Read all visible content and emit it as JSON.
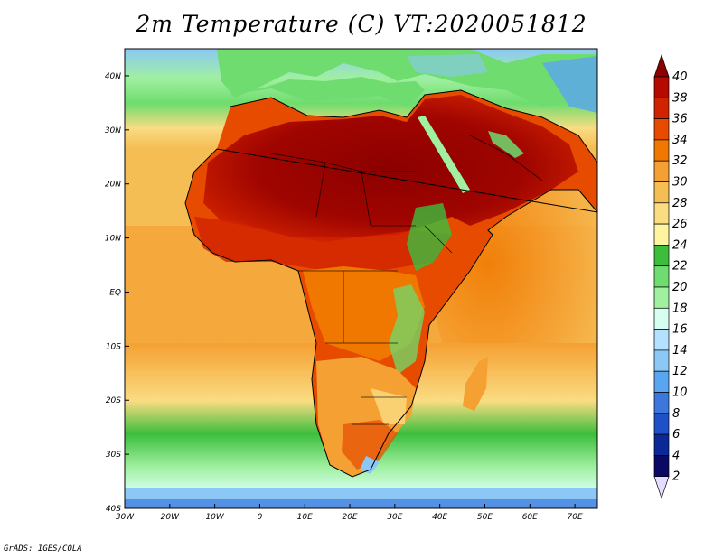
{
  "title": "2m Temperature (C) VT:2020051812",
  "credit": "GrADS: IGES/COLA",
  "map": {
    "lon_range": [
      -30,
      75
    ],
    "lat_range": [
      -40,
      45
    ],
    "lon_ticks": [
      {
        "value": -30,
        "label": "30W"
      },
      {
        "value": -20,
        "label": "20W"
      },
      {
        "value": -10,
        "label": "10W"
      },
      {
        "value": 0,
        "label": "0"
      },
      {
        "value": 10,
        "label": "10E"
      },
      {
        "value": 20,
        "label": "20E"
      },
      {
        "value": 30,
        "label": "30E"
      },
      {
        "value": 40,
        "label": "40E"
      },
      {
        "value": 50,
        "label": "50E"
      },
      {
        "value": 60,
        "label": "60E"
      },
      {
        "value": 70,
        "label": "70E"
      }
    ],
    "lat_ticks": [
      {
        "value": 40,
        "label": "40N"
      },
      {
        "value": 30,
        "label": "30N"
      },
      {
        "value": 20,
        "label": "20N"
      },
      {
        "value": 10,
        "label": "10N"
      },
      {
        "value": 0,
        "label": "EQ"
      },
      {
        "value": -10,
        "label": "10S"
      },
      {
        "value": -20,
        "label": "20S"
      },
      {
        "value": -30,
        "label": "30S"
      },
      {
        "value": -40,
        "label": "40S"
      }
    ]
  },
  "colorbar": {
    "labels": [
      "40",
      "38",
      "36",
      "34",
      "32",
      "30",
      "28",
      "26",
      "24",
      "22",
      "20",
      "18",
      "16",
      "14",
      "12",
      "10",
      "8",
      "6",
      "4",
      "2"
    ],
    "colors": [
      "#8c0000",
      "#b40a00",
      "#d22300",
      "#e64b00",
      "#f07800",
      "#f5a032",
      "#f5be55",
      "#fadc82",
      "#fff5a0",
      "#3cbe3c",
      "#6edc6e",
      "#a0f0a0",
      "#d7fff0",
      "#b4e1ff",
      "#8cc8f5",
      "#5aa5f0",
      "#3c78dc",
      "#1e50c8",
      "#0a2896",
      "#0a0a64"
    ],
    "top_color": "#8c0000",
    "bottom_color": "#e6dcff"
  }
}
